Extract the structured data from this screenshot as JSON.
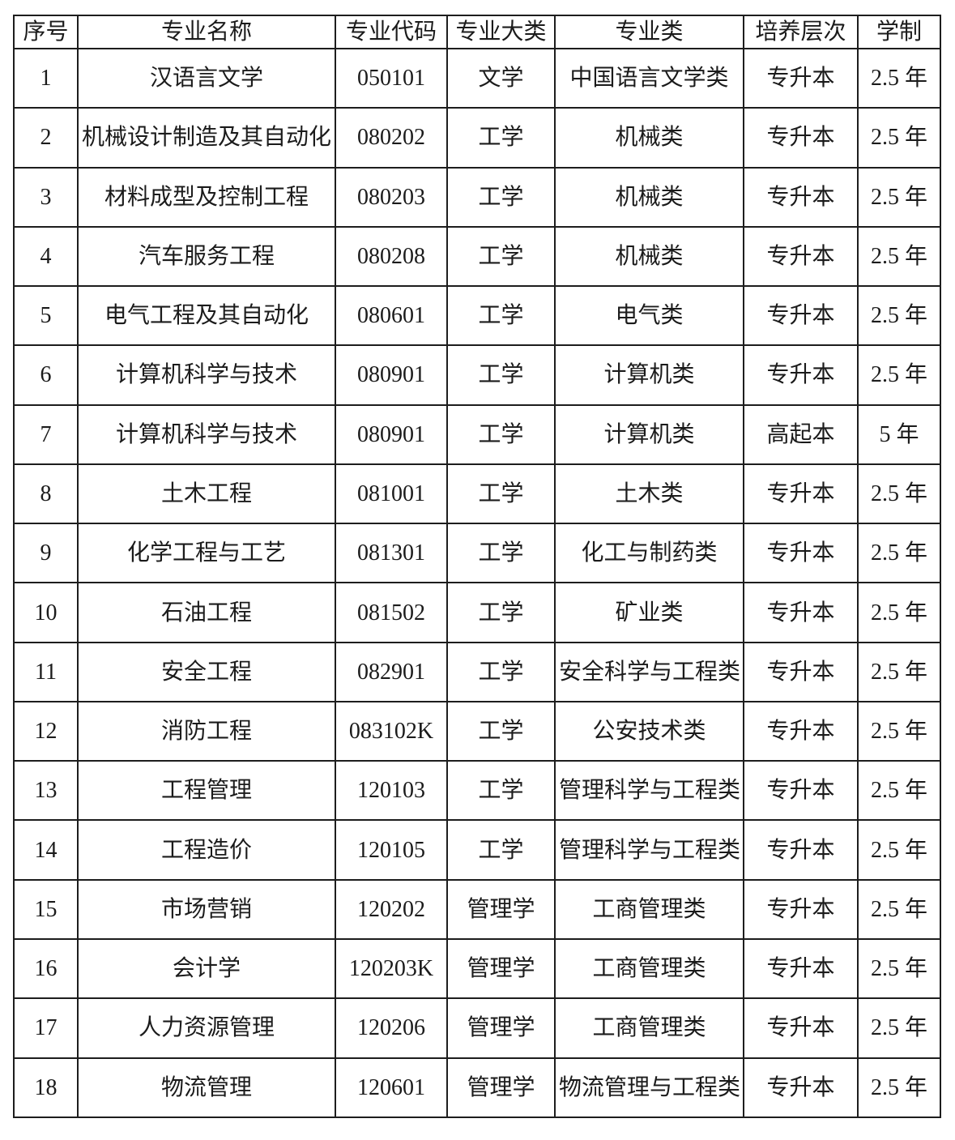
{
  "colors": {
    "background": "#ffffff",
    "border": "#1d1d1d",
    "text": "#1b1b1b"
  },
  "table": {
    "columns": [
      "序号",
      "专业名称",
      "专业代码",
      "专业大类",
      "专业类",
      "培养层次",
      "学制"
    ],
    "fields": [
      "no",
      "name",
      "code",
      "category",
      "class",
      "level",
      "duration"
    ],
    "rows": [
      {
        "no": "1",
        "name": "汉语言文学",
        "code": "050101",
        "category": "文学",
        "class": "中国语言文学类",
        "level": "专升本",
        "duration": "2.5 年"
      },
      {
        "no": "2",
        "name": "机械设计制造及其自动化",
        "code": "080202",
        "category": "工学",
        "class": "机械类",
        "level": "专升本",
        "duration": "2.5 年"
      },
      {
        "no": "3",
        "name": "材料成型及控制工程",
        "code": "080203",
        "category": "工学",
        "class": "机械类",
        "level": "专升本",
        "duration": "2.5 年"
      },
      {
        "no": "4",
        "name": "汽车服务工程",
        "code": "080208",
        "category": "工学",
        "class": "机械类",
        "level": "专升本",
        "duration": "2.5 年"
      },
      {
        "no": "5",
        "name": "电气工程及其自动化",
        "code": "080601",
        "category": "工学",
        "class": "电气类",
        "level": "专升本",
        "duration": "2.5 年"
      },
      {
        "no": "6",
        "name": "计算机科学与技术",
        "code": "080901",
        "category": "工学",
        "class": "计算机类",
        "level": "专升本",
        "duration": "2.5 年"
      },
      {
        "no": "7",
        "name": "计算机科学与技术",
        "code": "080901",
        "category": "工学",
        "class": "计算机类",
        "level": "高起本",
        "duration": "5 年"
      },
      {
        "no": "8",
        "name": "土木工程",
        "code": "081001",
        "category": "工学",
        "class": "土木类",
        "level": "专升本",
        "duration": "2.5 年"
      },
      {
        "no": "9",
        "name": "化学工程与工艺",
        "code": "081301",
        "category": "工学",
        "class": "化工与制药类",
        "level": "专升本",
        "duration": "2.5 年"
      },
      {
        "no": "10",
        "name": "石油工程",
        "code": "081502",
        "category": "工学",
        "class": "矿业类",
        "level": "专升本",
        "duration": "2.5 年"
      },
      {
        "no": "11",
        "name": "安全工程",
        "code": "082901",
        "category": "工学",
        "class": "安全科学与工程类",
        "level": "专升本",
        "duration": "2.5 年"
      },
      {
        "no": "12",
        "name": "消防工程",
        "code": "083102K",
        "category": "工学",
        "class": "公安技术类",
        "level": "专升本",
        "duration": "2.5 年"
      },
      {
        "no": "13",
        "name": "工程管理",
        "code": "120103",
        "category": "工学",
        "class": "管理科学与工程类",
        "level": "专升本",
        "duration": "2.5 年"
      },
      {
        "no": "14",
        "name": "工程造价",
        "code": "120105",
        "category": "工学",
        "class": "管理科学与工程类",
        "level": "专升本",
        "duration": "2.5 年"
      },
      {
        "no": "15",
        "name": "市场营销",
        "code": "120202",
        "category": "管理学",
        "class": "工商管理类",
        "level": "专升本",
        "duration": "2.5 年"
      },
      {
        "no": "16",
        "name": "会计学",
        "code": "120203K",
        "category": "管理学",
        "class": "工商管理类",
        "level": "专升本",
        "duration": "2.5 年"
      },
      {
        "no": "17",
        "name": "人力资源管理",
        "code": "120206",
        "category": "管理学",
        "class": "工商管理类",
        "level": "专升本",
        "duration": "2.5 年"
      },
      {
        "no": "18",
        "name": "物流管理",
        "code": "120601",
        "category": "管理学",
        "class": "物流管理与工程类",
        "level": "专升本",
        "duration": "2.5 年"
      }
    ]
  }
}
